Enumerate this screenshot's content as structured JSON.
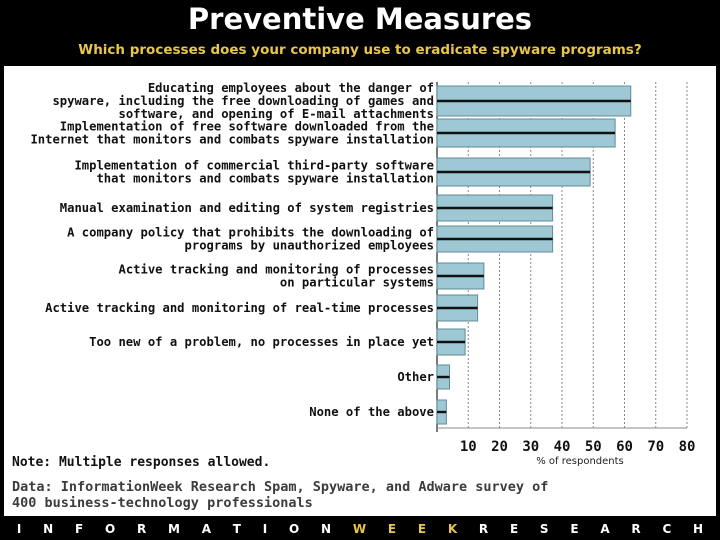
{
  "header": {
    "title": "Preventive Measures",
    "subtitle": "Which processes does your company use to eradicate spyware programs?"
  },
  "colors": {
    "background": "#000000",
    "title": "#ffffff",
    "subtitle": "#e8c64a",
    "bar_fill": "#9dc8d4",
    "bar_stroke": "#5f8c99",
    "bar_line": "#111111",
    "footer_highlight": "#e8c64a"
  },
  "chart_data": {
    "type": "bar",
    "orientation": "horizontal",
    "title": "Preventive Measures",
    "subtitle": "Which processes does your company use to eradicate spyware programs?",
    "xlabel": "% of respondents",
    "ylabel": "",
    "xlim": [
      0,
      80
    ],
    "xticks": [
      10,
      20,
      30,
      40,
      50,
      60,
      70,
      80
    ],
    "grid": "vertical dashed",
    "categories": [
      [
        "Educating employees about the danger of",
        "spyware, including the free downloading of games and",
        "software, and opening of E-mail attachments"
      ],
      [
        "Implementation of free software downloaded from the",
        "Internet that monitors and combats spyware installation"
      ],
      [
        "Implementation of commercial third-party software",
        "that monitors and combats spyware installation"
      ],
      [
        "Manual examination and editing of system registries"
      ],
      [
        "A company policy that prohibits the downloading of",
        "programs by unauthorized employees"
      ],
      [
        "Active tracking and monitoring of processes",
        "on particular systems"
      ],
      [
        "Active tracking and monitoring of real-time processes"
      ],
      [
        "Too new of a problem, no processes in place yet"
      ],
      [
        "Other"
      ],
      [
        "None of the above"
      ]
    ],
    "values": [
      62,
      57,
      49,
      37,
      37,
      15,
      13,
      9,
      4,
      3
    ]
  },
  "note": "Note: Multiple responses allowed.",
  "source": [
    "Data: InformationWeek Research Spam, Spyware, and Adware survey of",
    "400 business-technology professionals"
  ],
  "footer": {
    "letters": [
      "I",
      "N",
      "F",
      "O",
      "R",
      "M",
      "A",
      "T",
      "I",
      "O",
      "N",
      "W",
      "E",
      "E",
      "K",
      "R",
      "E",
      "S",
      "E",
      "A",
      "R",
      "C",
      "H"
    ],
    "highlight_letters": [
      11,
      12,
      13,
      14
    ]
  }
}
